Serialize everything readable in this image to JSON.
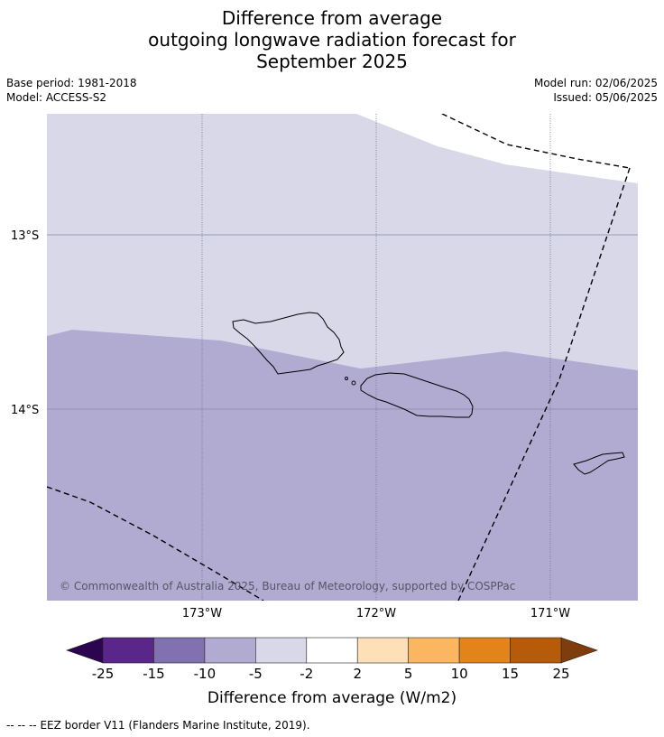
{
  "title": {
    "line1": "Difference from average",
    "line2": "outgoing longwave radiation forecast for",
    "line3": "September 2025"
  },
  "meta": {
    "base_period": "Base period: 1981-2018",
    "model": "Model: ACCESS-S2",
    "model_run": "Model run: 02/06/2025",
    "issued": "Issued: 05/06/2025"
  },
  "map": {
    "lat_labels": [
      "13°S",
      "14°S"
    ],
    "lon_labels": [
      "173°W",
      "172°W",
      "171°W"
    ],
    "copyright": "© Commonwealth of Australia 2025, Bureau of Meteorology, supported by COSPPac",
    "fill_colors": {
      "band_minus5_minus2": "#d8d8e9",
      "band_minus10_minus5": "#b1abd2"
    }
  },
  "colorbar": {
    "tick_labels": [
      "-25",
      "-15",
      "-10",
      "-5",
      "-2",
      "2",
      "5",
      "10",
      "15",
      "25"
    ],
    "colors": [
      "#5b2689",
      "#8171b0",
      "#b1abd2",
      "#d8d8e9",
      "#ffffff",
      "#fde0b7",
      "#fcb662",
      "#e28419",
      "#b65b0a"
    ],
    "under_color": "#2c0551",
    "over_color": "#7f3c0d",
    "label": "Difference from average (W/m2)"
  },
  "footer": {
    "legend_symbol": "--  --  --",
    "legend_text": "EEZ border V11 (Flanders Marine Institute, 2019)."
  }
}
